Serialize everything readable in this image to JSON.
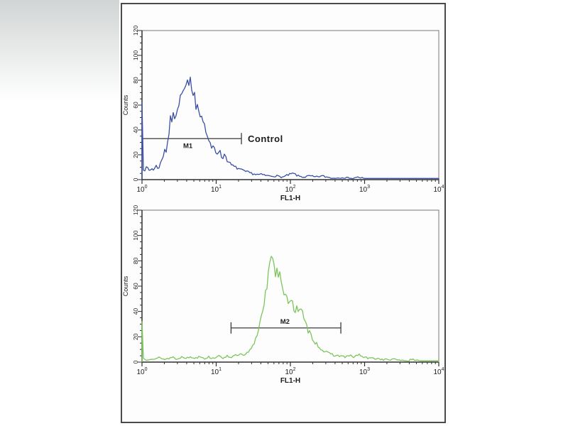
{
  "figure": {
    "bg_shade_color": "#d2d5d5",
    "panel_border_color": "#4a4a4a",
    "panel_bg": "#fdfdfd",
    "axis_color": "#2f2f2f",
    "frame_color": "#777777",
    "gate_color": "#3a3a3a",
    "text_color": "#1c1c1c"
  },
  "chart_data": [
    {
      "type": "line",
      "id": "control-histogram",
      "series_name": "Control",
      "color": "#3a4fa5",
      "xlabel": "FL1-H",
      "ylabel": "Counts",
      "xscale": "log",
      "x_decades": [
        0,
        4
      ],
      "ylim": [
        0,
        120
      ],
      "ytick_major_step": 20,
      "ytick_minor_step": 5,
      "yticks": [
        "0",
        "20",
        "40",
        "60",
        "80",
        "100",
        "120"
      ],
      "xtick_base": "10",
      "xtick_exponents": [
        "0",
        "1",
        "2",
        "3",
        "4"
      ],
      "marker": {
        "label": "M1",
        "annotation": "Control",
        "counts_level": 33,
        "log_start": 0.0,
        "log_end": 1.34,
        "tick_start": false,
        "tick_end": true
      },
      "points_log10_counts": [
        [
          0,
          62
        ],
        [
          0.012,
          9
        ],
        [
          0.04,
          8
        ],
        [
          0.07,
          10
        ],
        [
          0.1,
          7
        ],
        [
          0.13,
          9
        ],
        [
          0.16,
          8
        ],
        [
          0.19,
          11
        ],
        [
          0.22,
          9
        ],
        [
          0.25,
          13
        ],
        [
          0.28,
          18
        ],
        [
          0.31,
          26
        ],
        [
          0.33,
          22
        ],
        [
          0.35,
          33
        ],
        [
          0.37,
          40
        ],
        [
          0.39,
          52
        ],
        [
          0.41,
          46
        ],
        [
          0.43,
          55
        ],
        [
          0.45,
          48
        ],
        [
          0.47,
          62
        ],
        [
          0.49,
          56
        ],
        [
          0.51,
          70
        ],
        [
          0.53,
          63
        ],
        [
          0.55,
          77
        ],
        [
          0.57,
          69
        ],
        [
          0.59,
          75
        ],
        [
          0.61,
          80
        ],
        [
          0.63,
          74
        ],
        [
          0.65,
          79
        ],
        [
          0.67,
          71
        ],
        [
          0.69,
          64
        ],
        [
          0.71,
          68
        ],
        [
          0.73,
          59
        ],
        [
          0.75,
          64
        ],
        [
          0.77,
          54
        ],
        [
          0.79,
          50
        ],
        [
          0.81,
          57
        ],
        [
          0.83,
          46
        ],
        [
          0.85,
          41
        ],
        [
          0.87,
          37
        ],
        [
          0.89,
          34
        ],
        [
          0.91,
          29
        ],
        [
          0.94,
          24
        ],
        [
          0.97,
          28
        ],
        [
          1.0,
          21
        ],
        [
          1.04,
          24
        ],
        [
          1.08,
          17
        ],
        [
          1.12,
          21
        ],
        [
          1.16,
          14
        ],
        [
          1.2,
          12
        ],
        [
          1.25,
          10
        ],
        [
          1.3,
          9
        ],
        [
          1.36,
          7
        ],
        [
          1.42,
          6
        ],
        [
          1.48,
          5
        ],
        [
          1.55,
          4
        ],
        [
          1.62,
          4
        ],
        [
          1.7,
          3
        ],
        [
          1.8,
          3
        ],
        [
          1.9,
          2
        ],
        [
          1.98,
          4
        ],
        [
          2.04,
          5
        ],
        [
          2.1,
          3
        ],
        [
          2.18,
          2
        ],
        [
          2.26,
          3
        ],
        [
          2.34,
          2
        ],
        [
          2.42,
          3
        ],
        [
          2.5,
          2
        ],
        [
          2.6,
          1
        ],
        [
          2.7,
          2
        ],
        [
          2.8,
          1
        ],
        [
          2.9,
          2
        ],
        [
          3.0,
          1
        ],
        [
          3.1,
          1
        ],
        [
          3.25,
          1
        ],
        [
          3.4,
          1
        ],
        [
          3.55,
          1
        ],
        [
          3.7,
          1
        ],
        [
          3.85,
          1
        ],
        [
          4.0,
          1
        ]
      ]
    },
    {
      "type": "line",
      "id": "stained-histogram",
      "series_name": "M2",
      "color": "#7cc55c",
      "xlabel": "FL1-H",
      "ylabel": "Counts",
      "xscale": "log",
      "x_decades": [
        0,
        4
      ],
      "ylim": [
        0,
        120
      ],
      "ytick_major_step": 20,
      "ytick_minor_step": 5,
      "yticks": [
        "0",
        "20",
        "40",
        "60",
        "80",
        "100",
        "120"
      ],
      "xtick_base": "10",
      "xtick_exponents": [
        "0",
        "1",
        "2",
        "3",
        "4"
      ],
      "marker": {
        "label": "M2",
        "annotation": "",
        "counts_level": 27,
        "log_start": 1.2,
        "log_end": 2.68,
        "tick_start": true,
        "tick_end": true
      },
      "points_log10_counts": [
        [
          0,
          32
        ],
        [
          0.012,
          3
        ],
        [
          0.06,
          2
        ],
        [
          0.12,
          3
        ],
        [
          0.18,
          2
        ],
        [
          0.24,
          4
        ],
        [
          0.3,
          2
        ],
        [
          0.36,
          3
        ],
        [
          0.42,
          4
        ],
        [
          0.48,
          2
        ],
        [
          0.54,
          5
        ],
        [
          0.6,
          3
        ],
        [
          0.66,
          4
        ],
        [
          0.72,
          3
        ],
        [
          0.78,
          5
        ],
        [
          0.84,
          3
        ],
        [
          0.9,
          4
        ],
        [
          0.96,
          3
        ],
        [
          1.02,
          5
        ],
        [
          1.08,
          3
        ],
        [
          1.14,
          5
        ],
        [
          1.2,
          4
        ],
        [
          1.26,
          5
        ],
        [
          1.32,
          6
        ],
        [
          1.38,
          5
        ],
        [
          1.44,
          8
        ],
        [
          1.5,
          13
        ],
        [
          1.54,
          20
        ],
        [
          1.58,
          28
        ],
        [
          1.61,
          38
        ],
        [
          1.64,
          47
        ],
        [
          1.67,
          56
        ],
        [
          1.69,
          63
        ],
        [
          1.71,
          71
        ],
        [
          1.73,
          80
        ],
        [
          1.745,
          86
        ],
        [
          1.76,
          79
        ],
        [
          1.78,
          74
        ],
        [
          1.8,
          70
        ],
        [
          1.82,
          76
        ],
        [
          1.84,
          69
        ],
        [
          1.86,
          72
        ],
        [
          1.88,
          63
        ],
        [
          1.9,
          58
        ],
        [
          1.93,
          53
        ],
        [
          1.96,
          49
        ],
        [
          2.0,
          44
        ],
        [
          2.03,
          48
        ],
        [
          2.06,
          41
        ],
        [
          2.09,
          45
        ],
        [
          2.12,
          39
        ],
        [
          2.15,
          42
        ],
        [
          2.18,
          33
        ],
        [
          2.21,
          29
        ],
        [
          2.24,
          25
        ],
        [
          2.28,
          21
        ],
        [
          2.32,
          17
        ],
        [
          2.36,
          14
        ],
        [
          2.4,
          11
        ],
        [
          2.45,
          9
        ],
        [
          2.5,
          7
        ],
        [
          2.56,
          6
        ],
        [
          2.62,
          5
        ],
        [
          2.68,
          5
        ],
        [
          2.74,
          4
        ],
        [
          2.8,
          5
        ],
        [
          2.86,
          4
        ],
        [
          2.92,
          6
        ],
        [
          2.98,
          4
        ],
        [
          3.05,
          3
        ],
        [
          3.15,
          3
        ],
        [
          3.25,
          2
        ],
        [
          3.35,
          2
        ],
        [
          3.45,
          2
        ],
        [
          3.55,
          1
        ],
        [
          3.65,
          2
        ],
        [
          3.75,
          1
        ],
        [
          3.85,
          1
        ],
        [
          4.0,
          1
        ]
      ]
    }
  ]
}
